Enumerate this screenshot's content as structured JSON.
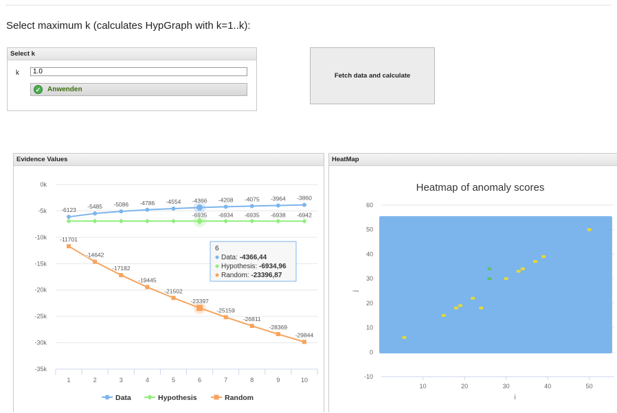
{
  "heading": "Select maximum k (calculates HypGraph with k=1..k):",
  "select_panel": {
    "title": "Select k",
    "k_label": "k",
    "k_value": "1.0",
    "apply_label": "Anwenden"
  },
  "fetch_button": "Fetch data and calculate",
  "evidence_panel": {
    "title": "Evidence Values"
  },
  "heatmap_panel": {
    "title": "HeatMap"
  },
  "chart_data": [
    {
      "type": "line",
      "title": "",
      "x": [
        1,
        2,
        3,
        4,
        5,
        6,
        7,
        8,
        9,
        10
      ],
      "y_ticks": [
        0,
        -5000,
        -10000,
        -15000,
        -20000,
        -25000,
        -30000,
        -35000
      ],
      "y_tick_labels": [
        "0k",
        "-5k",
        "-10k",
        "-15k",
        "-20k",
        "-25k",
        "-30k",
        "-35k"
      ],
      "ylim": [
        -35000,
        0
      ],
      "series": [
        {
          "name": "Data",
          "color": "#7cb5ec",
          "marker": "circle",
          "values": [
            -6123,
            -5485,
            -5086,
            -4786,
            -4554,
            -4366,
            -4208,
            -4075,
            -3964,
            -3860
          ],
          "labels": [
            "-6123",
            "-5485",
            "-5086",
            "-4786",
            "-4554",
            "-4366",
            "-4208",
            "-4075",
            "-3964",
            "-3860"
          ]
        },
        {
          "name": "Hypothesis",
          "color": "#90ed7d",
          "marker": "diamond",
          "values": [
            -6935,
            -6935,
            -6935,
            -6935,
            -6935,
            -6935,
            -6934,
            -6935,
            -6938,
            -6942
          ],
          "labels": [
            "",
            "",
            "",
            "",
            "",
            "-6935",
            "-6934",
            "-6935",
            "-6938",
            "-6942"
          ]
        },
        {
          "name": "Random",
          "color": "#f7a35c",
          "marker": "square",
          "values": [
            -11701,
            -14642,
            -17182,
            -19445,
            -21502,
            -23397,
            -25159,
            -26811,
            -28369,
            -29844
          ],
          "labels": [
            "-11701",
            "-14642",
            "-17182",
            "-19445",
            "-21502",
            "-23397",
            "-25159",
            "-26811",
            "-28369",
            "-29844"
          ]
        }
      ],
      "legend_position": "bottom",
      "grid": true,
      "tooltip": {
        "header": "6",
        "rows": [
          {
            "label": "Data: ",
            "value": "-4366,44",
            "color": "#7cb5ec"
          },
          {
            "label": "Hypothesis: ",
            "value": "-6934,96",
            "color": "#90ed7d"
          },
          {
            "label": "Random: ",
            "value": "-23396,87",
            "color": "#f7a35c"
          }
        ]
      }
    },
    {
      "type": "heatmap",
      "title": "Heatmap of anomaly scores",
      "xlabel": "i",
      "ylabel": "j",
      "xlim": [
        0,
        56
      ],
      "ylim": [
        -10,
        60
      ],
      "x_ticks": [
        10,
        20,
        30,
        40,
        50
      ],
      "y_ticks": [
        -10,
        0,
        10,
        20,
        30,
        40,
        50,
        60
      ],
      "grid_extent": {
        "x": [
          0,
          55
        ],
        "y": [
          0,
          55
        ]
      },
      "background_color": "#7cb5ec",
      "highlight_points": [
        {
          "x": 5.5,
          "y": 6,
          "color": "#e4d83a"
        },
        {
          "x": 15,
          "y": 15,
          "color": "#e4d83a"
        },
        {
          "x": 18,
          "y": 18,
          "color": "#e4d83a"
        },
        {
          "x": 19,
          "y": 19,
          "color": "#e4d83a"
        },
        {
          "x": 22,
          "y": 22,
          "color": "#e4d83a"
        },
        {
          "x": 24,
          "y": 18,
          "color": "#e4d83a"
        },
        {
          "x": 26,
          "y": 34,
          "color": "#60c070"
        },
        {
          "x": 26,
          "y": 30,
          "color": "#60c070"
        },
        {
          "x": 30,
          "y": 30,
          "color": "#e4d83a"
        },
        {
          "x": 33,
          "y": 33,
          "color": "#e4d83a"
        },
        {
          "x": 34,
          "y": 34,
          "color": "#e4d83a"
        },
        {
          "x": 37,
          "y": 37,
          "color": "#e4d83a"
        },
        {
          "x": 39,
          "y": 39,
          "color": "#e4d83a"
        },
        {
          "x": 50,
          "y": 50,
          "color": "#e4d83a"
        }
      ]
    }
  ]
}
